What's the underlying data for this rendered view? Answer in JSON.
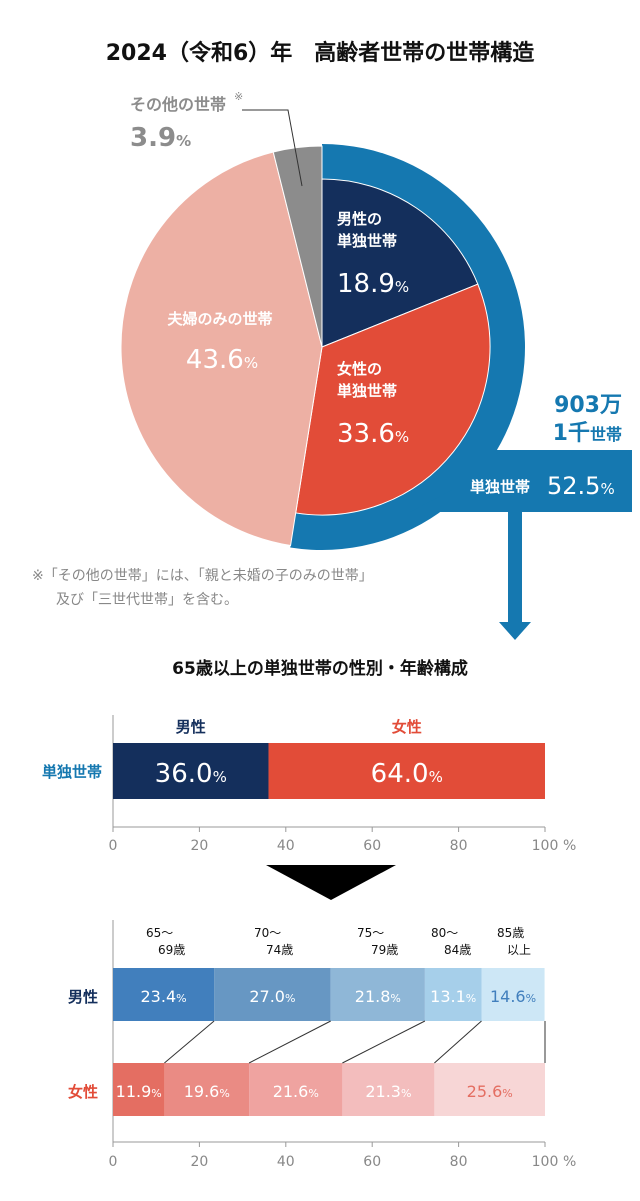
{
  "colors": {
    "ring": "#1578b0",
    "male": "#142f5c",
    "female": "#e24c38",
    "couple": "#edb0a4",
    "other": "#8c8c8c",
    "male_label": "#142f5c",
    "female_label": "#e24c38",
    "single_label": "#1578b0"
  },
  "chart_data": [
    {
      "type": "pie",
      "title": "2024（令和6）年　高齢者世帯の世帯構造",
      "slices": [
        {
          "name": "男性の単独世帯",
          "value": 18.9,
          "label": "18.9",
          "color": "#142f5c"
        },
        {
          "name": "女性の単独世帯",
          "value": 33.6,
          "label": "33.6",
          "color": "#e24c38"
        },
        {
          "name": "夫婦のみの世帯",
          "value": 43.6,
          "label": "43.6",
          "color": "#edb0a4"
        },
        {
          "name": "その他の世帯",
          "value": 3.9,
          "label": "3.9",
          "color": "#8c8c8c"
        }
      ],
      "unit": "%",
      "other_mark": "※",
      "ring": {
        "name": "単独世帯",
        "value": 52.5,
        "label": "52.5",
        "count_line1": "903万",
        "count_line2a": "1千",
        "count_line2b": "世帯"
      },
      "footnote_line1": "※「その他の世帯」には、「親と未婚の子のみの世帯」",
      "footnote_line2": "及び「三世代世帯」を含む。"
    },
    {
      "type": "bar",
      "stacked": true,
      "orientation": "horizontal",
      "title": "65歳以上の単独世帯の性別・年齢構成",
      "categories": [
        "単独世帯"
      ],
      "series": [
        {
          "name": "男性",
          "values": [
            36.0
          ],
          "label": "36.0",
          "color": "#142f5c"
        },
        {
          "name": "女性",
          "values": [
            64.0
          ],
          "label": "64.0",
          "color": "#e24c38"
        }
      ],
      "xlim": [
        0,
        100
      ],
      "xticks": [
        "0",
        "20",
        "40",
        "60",
        "80",
        "100"
      ],
      "unit": "%"
    },
    {
      "type": "bar",
      "stacked": true,
      "orientation": "horizontal",
      "categories": [
        "男性",
        "女性"
      ],
      "segment_labels": [
        [
          "65〜",
          "69歳"
        ],
        [
          "70〜",
          "74歳"
        ],
        [
          "75〜",
          "79歳"
        ],
        [
          "80〜",
          "84歳"
        ],
        [
          "85歳",
          "以上"
        ]
      ],
      "rows": [
        {
          "name": "男性",
          "values": [
            23.4,
            27.0,
            21.8,
            13.1,
            14.6
          ],
          "colors": [
            "#417fbd",
            "#6797c3",
            "#8fb7d7",
            "#a6cfea",
            "#cde7f6"
          ],
          "text_colors": [
            "#fff",
            "#fff",
            "#fff",
            "#fff",
            "#417fbd"
          ]
        },
        {
          "name": "女性",
          "values": [
            11.9,
            19.6,
            21.6,
            21.3,
            25.6
          ],
          "colors": [
            "#e46e62",
            "#ea8b84",
            "#efa3a0",
            "#f3bdbd",
            "#f7d6d6"
          ],
          "text_colors": [
            "#fff",
            "#fff",
            "#fff",
            "#fff",
            "#e46e62"
          ]
        }
      ],
      "xlim": [
        0,
        100
      ],
      "xticks": [
        "0",
        "20",
        "40",
        "60",
        "80",
        "100"
      ],
      "unit": "%"
    }
  ]
}
